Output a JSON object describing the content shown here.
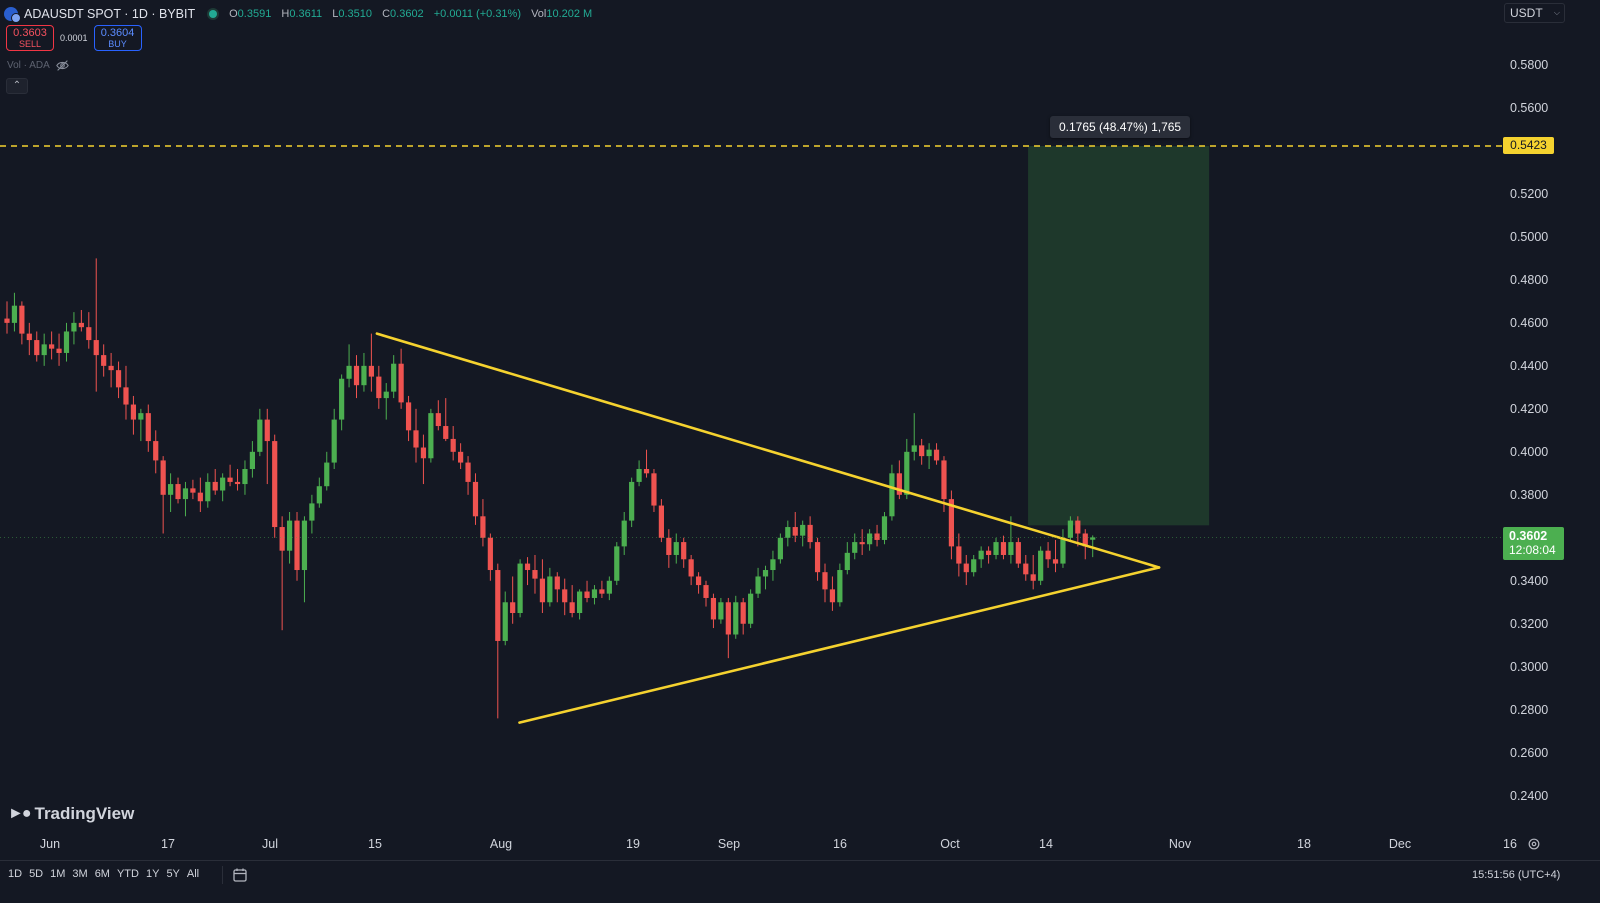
{
  "header": {
    "symbol_title": "ADAUSDT SPOT · 1D · BYBIT",
    "ohlc": {
      "o_label": "O",
      "o_value": "0.3591",
      "h_label": "H",
      "h_value": "0.3611",
      "l_label": "L",
      "l_value": "0.3510",
      "c_label": "C",
      "c_value": "0.3602",
      "change": "+0.0011 (+0.31%)",
      "vol_label": "Vol",
      "vol_value": "10.202 M"
    }
  },
  "trade_panel": {
    "sell_price": "0.3603",
    "sell_label": "SELL",
    "spread": "0.0001",
    "buy_price": "0.3604",
    "buy_label": "BUY"
  },
  "indicator": {
    "name": "Vol · ADA"
  },
  "currency_selector": "USDT",
  "price_scale": {
    "ticks": [
      "0.5800",
      "0.5600",
      "0.5200",
      "0.5000",
      "0.4800",
      "0.4600",
      "0.4400",
      "0.4200",
      "0.4000",
      "0.3800",
      "0.3400",
      "0.3200",
      "0.3000",
      "0.2800",
      "0.2600",
      "0.2400"
    ],
    "target_price": "0.5423",
    "last_price": "0.3602",
    "countdown": "12:08:04"
  },
  "measure_label": "0.1765 (48.47%) 1,765",
  "time_scale": [
    "Jun",
    "17",
    "Jul",
    "15",
    "Aug",
    "19",
    "Sep",
    "16",
    "Oct",
    "14",
    "Nov",
    "18",
    "Dec",
    "16"
  ],
  "bottom_toolbar": {
    "ranges": [
      "1D",
      "5D",
      "1M",
      "3M",
      "6M",
      "YTD",
      "1Y",
      "5Y",
      "All"
    ],
    "clock": "15:51:56 (UTC+4)"
  },
  "branding": {
    "logo_text": "TradingView"
  },
  "colors": {
    "background": "#141823",
    "up": "#4caf50",
    "down": "#ef5350",
    "trendline": "#f5d22f",
    "target_zone": "#1f3a2c"
  },
  "chart_data": {
    "type": "candlestick",
    "y_scale": {
      "price_per_px": 0.0004653,
      "ref_price": 0.5423
    },
    "candles": [
      [
        0.462,
        0.47,
        0.455,
        0.46
      ],
      [
        0.46,
        0.474,
        0.456,
        0.468
      ],
      [
        0.468,
        0.47,
        0.45,
        0.455
      ],
      [
        0.455,
        0.46,
        0.445,
        0.452
      ],
      [
        0.452,
        0.456,
        0.442,
        0.445
      ],
      [
        0.445,
        0.455,
        0.44,
        0.45
      ],
      [
        0.45,
        0.456,
        0.443,
        0.448
      ],
      [
        0.448,
        0.455,
        0.44,
        0.446
      ],
      [
        0.446,
        0.46,
        0.442,
        0.456
      ],
      [
        0.456,
        0.465,
        0.45,
        0.46
      ],
      [
        0.46,
        0.466,
        0.456,
        0.458
      ],
      [
        0.458,
        0.465,
        0.448,
        0.452
      ],
      [
        0.452,
        0.49,
        0.428,
        0.445
      ],
      [
        0.445,
        0.45,
        0.435,
        0.44
      ],
      [
        0.44,
        0.446,
        0.43,
        0.438
      ],
      [
        0.438,
        0.442,
        0.425,
        0.43
      ],
      [
        0.43,
        0.44,
        0.415,
        0.422
      ],
      [
        0.422,
        0.426,
        0.408,
        0.415
      ],
      [
        0.415,
        0.42,
        0.405,
        0.418
      ],
      [
        0.418,
        0.422,
        0.4,
        0.405
      ],
      [
        0.405,
        0.41,
        0.39,
        0.396
      ],
      [
        0.396,
        0.398,
        0.362,
        0.38
      ],
      [
        0.38,
        0.39,
        0.372,
        0.385
      ],
      [
        0.385,
        0.388,
        0.376,
        0.378
      ],
      [
        0.378,
        0.386,
        0.37,
        0.383
      ],
      [
        0.383,
        0.387,
        0.378,
        0.381
      ],
      [
        0.381,
        0.388,
        0.372,
        0.377
      ],
      [
        0.377,
        0.39,
        0.374,
        0.386
      ],
      [
        0.386,
        0.392,
        0.38,
        0.382
      ],
      [
        0.382,
        0.39,
        0.377,
        0.388
      ],
      [
        0.388,
        0.394,
        0.384,
        0.386
      ],
      [
        0.386,
        0.392,
        0.382,
        0.385
      ],
      [
        0.385,
        0.396,
        0.38,
        0.392
      ],
      [
        0.392,
        0.405,
        0.388,
        0.4
      ],
      [
        0.4,
        0.42,
        0.398,
        0.415
      ],
      [
        0.415,
        0.42,
        0.385,
        0.405
      ],
      [
        0.405,
        0.408,
        0.36,
        0.365
      ],
      [
        0.365,
        0.37,
        0.317,
        0.354
      ],
      [
        0.354,
        0.372,
        0.348,
        0.368
      ],
      [
        0.368,
        0.372,
        0.34,
        0.345
      ],
      [
        0.345,
        0.37,
        0.33,
        0.368
      ],
      [
        0.368,
        0.38,
        0.362,
        0.376
      ],
      [
        0.376,
        0.388,
        0.374,
        0.384
      ],
      [
        0.384,
        0.4,
        0.382,
        0.395
      ],
      [
        0.395,
        0.42,
        0.392,
        0.415
      ],
      [
        0.415,
        0.436,
        0.41,
        0.434
      ],
      [
        0.434,
        0.45,
        0.43,
        0.44
      ],
      [
        0.44,
        0.445,
        0.425,
        0.431
      ],
      [
        0.431,
        0.446,
        0.428,
        0.44
      ],
      [
        0.44,
        0.455,
        0.428,
        0.435
      ],
      [
        0.435,
        0.44,
        0.42,
        0.425
      ],
      [
        0.425,
        0.432,
        0.415,
        0.428
      ],
      [
        0.428,
        0.445,
        0.425,
        0.441
      ],
      [
        0.441,
        0.448,
        0.42,
        0.423
      ],
      [
        0.423,
        0.426,
        0.405,
        0.41
      ],
      [
        0.41,
        0.42,
        0.395,
        0.402
      ],
      [
        0.402,
        0.408,
        0.385,
        0.397
      ],
      [
        0.397,
        0.42,
        0.395,
        0.418
      ],
      [
        0.418,
        0.424,
        0.41,
        0.412
      ],
      [
        0.412,
        0.425,
        0.405,
        0.406
      ],
      [
        0.406,
        0.412,
        0.396,
        0.4
      ],
      [
        0.4,
        0.404,
        0.392,
        0.395
      ],
      [
        0.395,
        0.398,
        0.38,
        0.386
      ],
      [
        0.386,
        0.39,
        0.366,
        0.37
      ],
      [
        0.37,
        0.378,
        0.356,
        0.36
      ],
      [
        0.36,
        0.362,
        0.34,
        0.345
      ],
      [
        0.345,
        0.348,
        0.276,
        0.312
      ],
      [
        0.312,
        0.335,
        0.31,
        0.33
      ],
      [
        0.33,
        0.342,
        0.32,
        0.325
      ],
      [
        0.325,
        0.35,
        0.323,
        0.348
      ],
      [
        0.348,
        0.351,
        0.338,
        0.345
      ],
      [
        0.345,
        0.352,
        0.334,
        0.341
      ],
      [
        0.341,
        0.35,
        0.325,
        0.33
      ],
      [
        0.33,
        0.346,
        0.328,
        0.342
      ],
      [
        0.342,
        0.344,
        0.33,
        0.336
      ],
      [
        0.336,
        0.341,
        0.324,
        0.33
      ],
      [
        0.33,
        0.338,
        0.323,
        0.325
      ],
      [
        0.325,
        0.336,
        0.322,
        0.335
      ],
      [
        0.335,
        0.34,
        0.33,
        0.332
      ],
      [
        0.332,
        0.338,
        0.329,
        0.336
      ],
      [
        0.336,
        0.34,
        0.332,
        0.334
      ],
      [
        0.334,
        0.342,
        0.331,
        0.34
      ],
      [
        0.34,
        0.358,
        0.338,
        0.356
      ],
      [
        0.356,
        0.372,
        0.352,
        0.368
      ],
      [
        0.368,
        0.388,
        0.365,
        0.386
      ],
      [
        0.386,
        0.396,
        0.384,
        0.392
      ],
      [
        0.392,
        0.401,
        0.388,
        0.39
      ],
      [
        0.39,
        0.392,
        0.372,
        0.375
      ],
      [
        0.375,
        0.378,
        0.358,
        0.36
      ],
      [
        0.36,
        0.364,
        0.346,
        0.352
      ],
      [
        0.352,
        0.362,
        0.348,
        0.358
      ],
      [
        0.358,
        0.36,
        0.346,
        0.35
      ],
      [
        0.35,
        0.352,
        0.338,
        0.342
      ],
      [
        0.342,
        0.344,
        0.334,
        0.338
      ],
      [
        0.338,
        0.34,
        0.328,
        0.332
      ],
      [
        0.332,
        0.334,
        0.318,
        0.322
      ],
      [
        0.322,
        0.332,
        0.32,
        0.33
      ],
      [
        0.33,
        0.332,
        0.304,
        0.315
      ],
      [
        0.315,
        0.333,
        0.313,
        0.33
      ],
      [
        0.33,
        0.332,
        0.315,
        0.32
      ],
      [
        0.32,
        0.336,
        0.318,
        0.334
      ],
      [
        0.334,
        0.346,
        0.332,
        0.342
      ],
      [
        0.342,
        0.347,
        0.336,
        0.345
      ],
      [
        0.345,
        0.354,
        0.34,
        0.35
      ],
      [
        0.35,
        0.362,
        0.348,
        0.36
      ],
      [
        0.36,
        0.368,
        0.356,
        0.365
      ],
      [
        0.365,
        0.372,
        0.358,
        0.361
      ],
      [
        0.361,
        0.368,
        0.356,
        0.366
      ],
      [
        0.366,
        0.37,
        0.355,
        0.358
      ],
      [
        0.358,
        0.36,
        0.34,
        0.344
      ],
      [
        0.344,
        0.348,
        0.33,
        0.336
      ],
      [
        0.336,
        0.342,
        0.326,
        0.33
      ],
      [
        0.33,
        0.348,
        0.328,
        0.345
      ],
      [
        0.345,
        0.358,
        0.343,
        0.353
      ],
      [
        0.353,
        0.362,
        0.35,
        0.358
      ],
      [
        0.358,
        0.364,
        0.352,
        0.357
      ],
      [
        0.357,
        0.364,
        0.354,
        0.362
      ],
      [
        0.362,
        0.366,
        0.356,
        0.359
      ],
      [
        0.359,
        0.372,
        0.357,
        0.37
      ],
      [
        0.37,
        0.394,
        0.368,
        0.39
      ],
      [
        0.39,
        0.396,
        0.378,
        0.38
      ],
      [
        0.38,
        0.406,
        0.378,
        0.4
      ],
      [
        0.4,
        0.418,
        0.396,
        0.403
      ],
      [
        0.403,
        0.406,
        0.394,
        0.398
      ],
      [
        0.398,
        0.404,
        0.392,
        0.401
      ],
      [
        0.401,
        0.404,
        0.394,
        0.396
      ],
      [
        0.396,
        0.398,
        0.372,
        0.378
      ],
      [
        0.378,
        0.382,
        0.35,
        0.356
      ],
      [
        0.356,
        0.362,
        0.342,
        0.348
      ],
      [
        0.348,
        0.352,
        0.338,
        0.344
      ],
      [
        0.344,
        0.352,
        0.342,
        0.35
      ],
      [
        0.35,
        0.356,
        0.346,
        0.354
      ],
      [
        0.354,
        0.356,
        0.348,
        0.352
      ],
      [
        0.352,
        0.36,
        0.35,
        0.358
      ],
      [
        0.358,
        0.361,
        0.35,
        0.352
      ],
      [
        0.352,
        0.37,
        0.348,
        0.358
      ],
      [
        0.358,
        0.36,
        0.346,
        0.348
      ],
      [
        0.348,
        0.352,
        0.34,
        0.343
      ],
      [
        0.343,
        0.352,
        0.336,
        0.34
      ],
      [
        0.34,
        0.356,
        0.338,
        0.354
      ],
      [
        0.354,
        0.358,
        0.346,
        0.35
      ],
      [
        0.35,
        0.359,
        0.344,
        0.348
      ],
      [
        0.348,
        0.364,
        0.346,
        0.36
      ],
      [
        0.36,
        0.37,
        0.358,
        0.368
      ],
      [
        0.368,
        0.37,
        0.356,
        0.362
      ],
      [
        0.362,
        0.364,
        0.35,
        0.356
      ],
      [
        0.3591,
        0.3611,
        0.351,
        0.3602
      ]
    ],
    "time_axis": {
      "px_per_day": 3.853,
      "first_candle_day": 0
    },
    "support_line": {
      "from": {
        "day": 133,
        "price": 0.274
      },
      "to": {
        "day": 299,
        "price": 0.3462
      }
    },
    "resistance_line": {
      "from": {
        "day": 96,
        "price": 0.455
      },
      "to": {
        "day": 299,
        "price": 0.3462
      }
    },
    "target_line": 0.5423,
    "target_zone": {
      "from_day": 265,
      "to_day": 312,
      "low": 0.3658,
      "high": 0.5423
    },
    "current_price": 0.3602
  }
}
